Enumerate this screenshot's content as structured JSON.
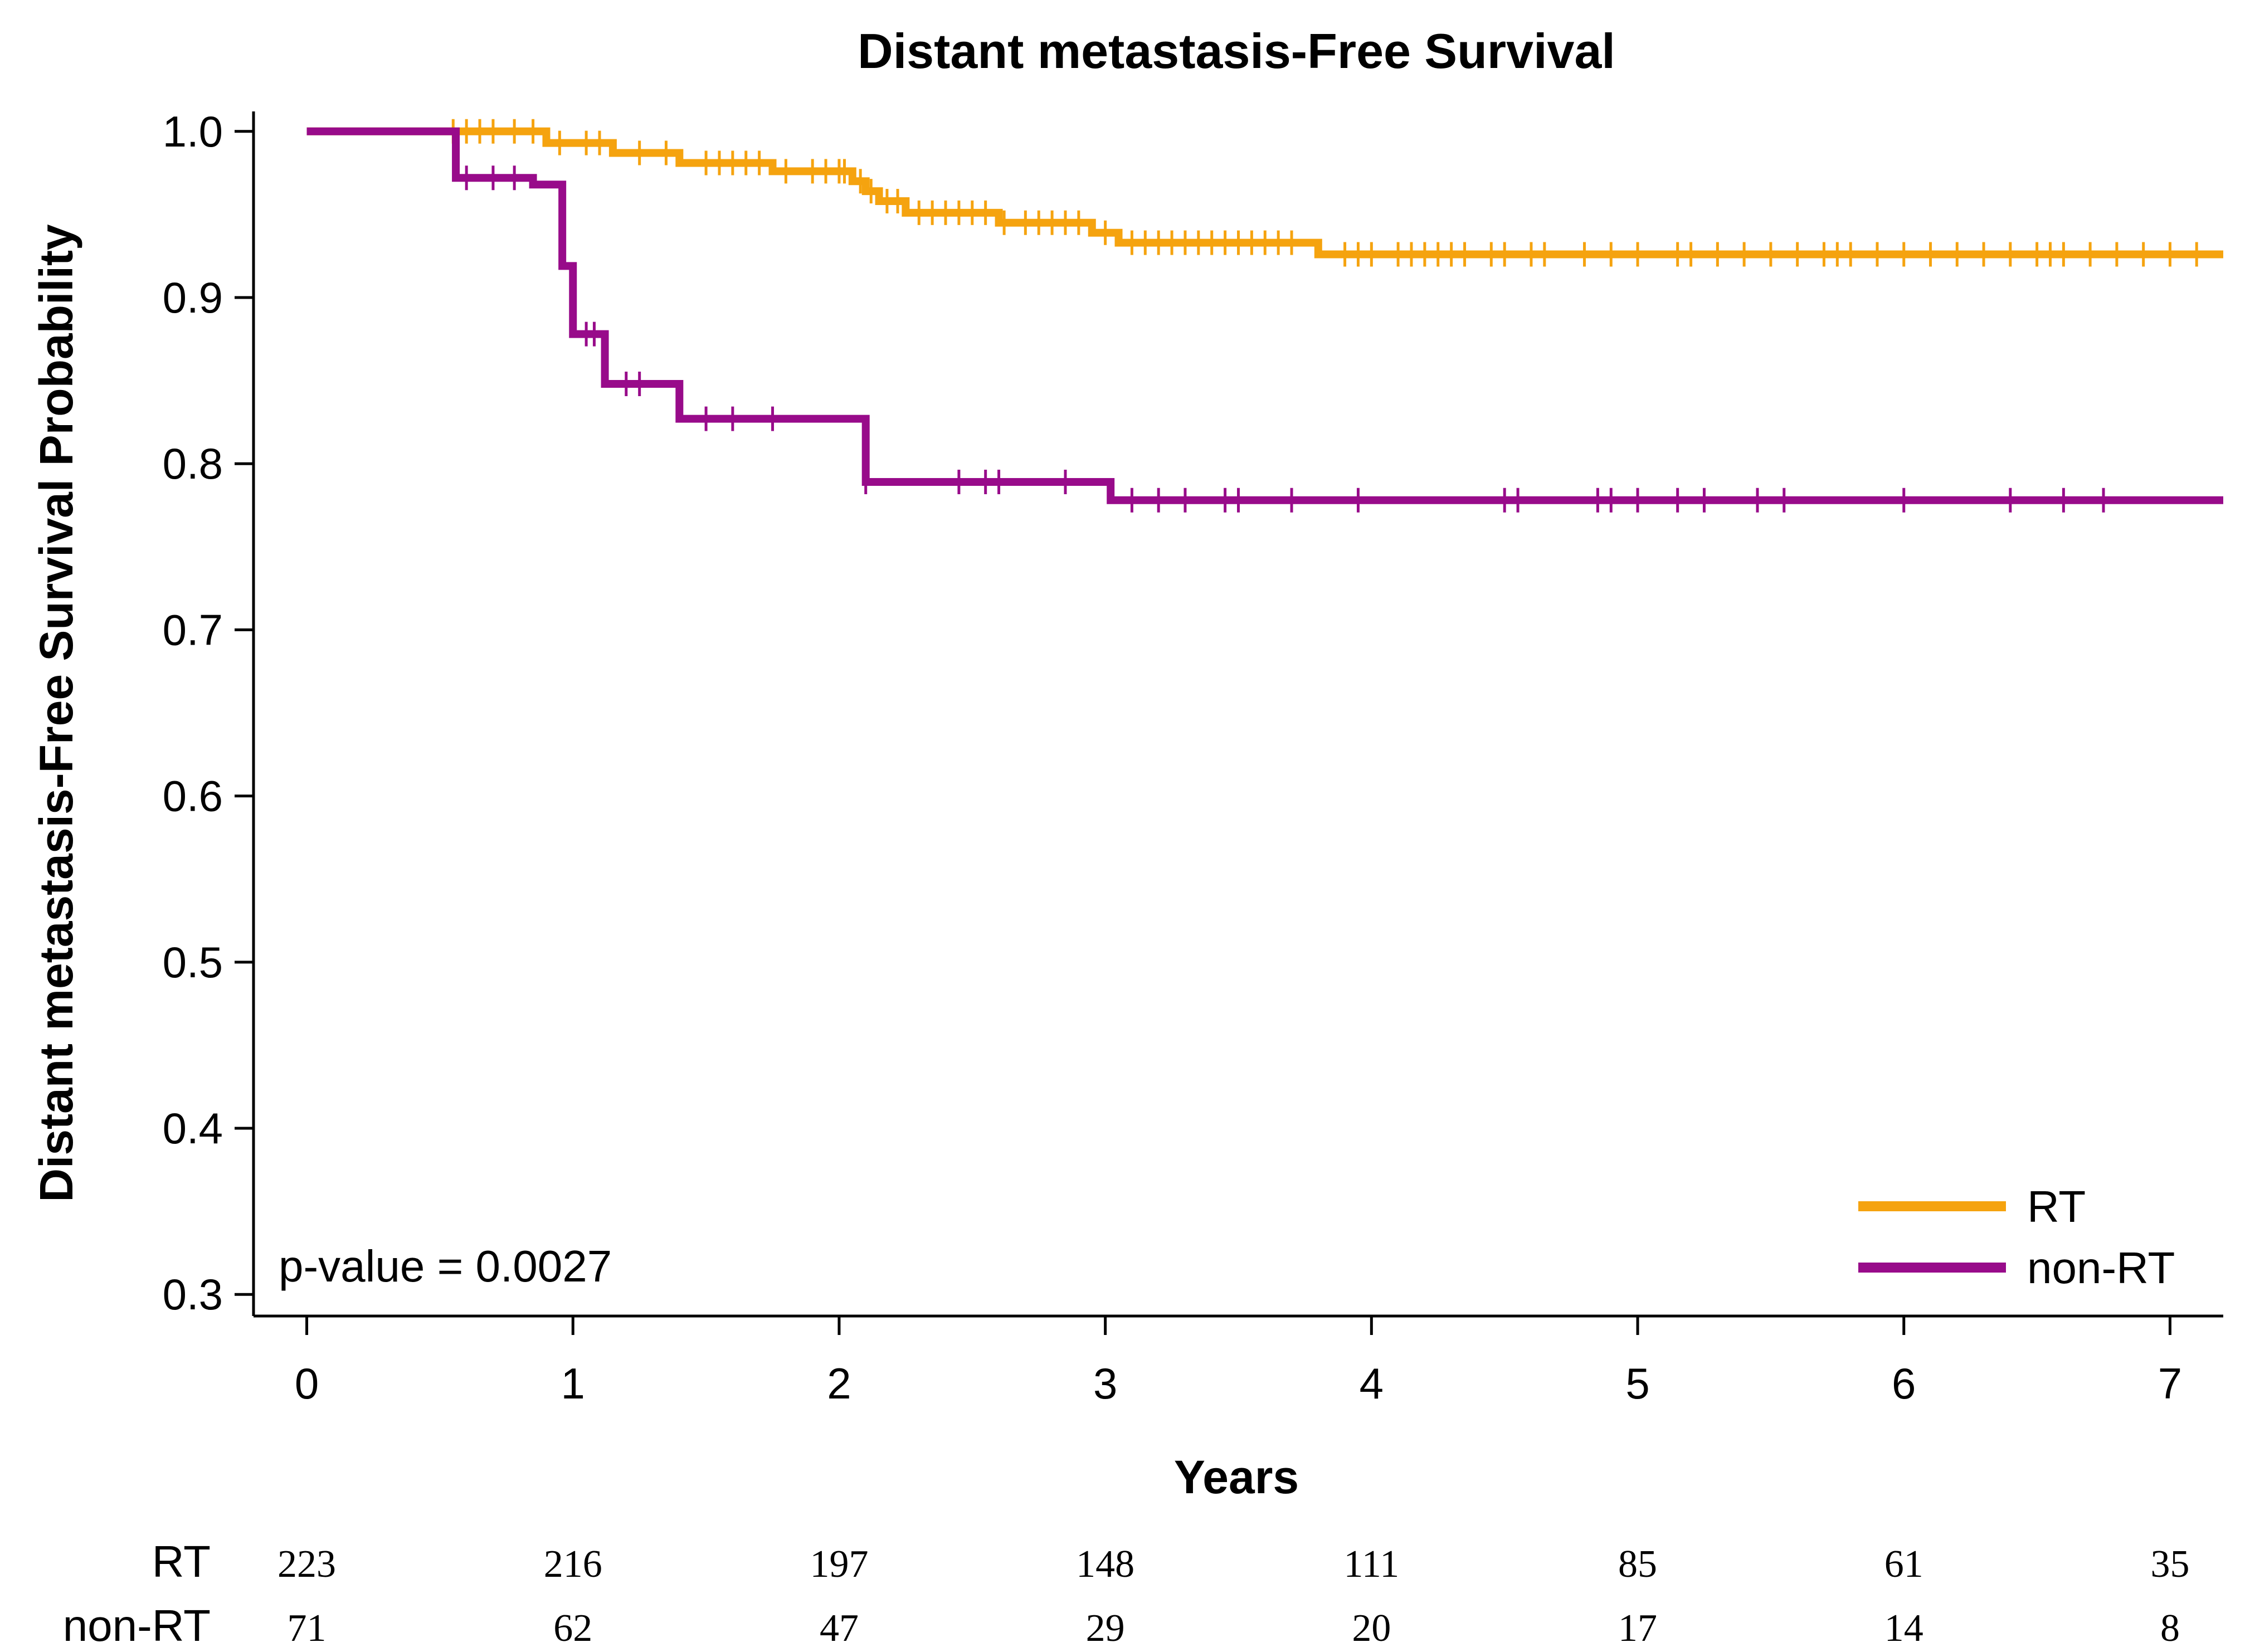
{
  "chart_data": {
    "type": "line",
    "title": "Distant metastasis-Free Survival",
    "xlabel": "Years",
    "ylabel": "Distant metastasis-Free Survival Probability",
    "xlim": [
      -0.2,
      7.2
    ],
    "ylim": [
      0.287,
      1.012
    ],
    "xticks": [
      0,
      1,
      2,
      3,
      4,
      5,
      6,
      7
    ],
    "yticks": [
      0.3,
      0.4,
      0.5,
      0.6,
      0.7,
      0.8,
      0.9,
      1.0
    ],
    "annotation": "p-value = 0.0027",
    "legend_position": "bottom-right",
    "series": [
      {
        "name": "RT",
        "color": "#F5A30F",
        "steps": [
          [
            0,
            1.0
          ],
          [
            0.9,
            0.993
          ],
          [
            1.15,
            0.987
          ],
          [
            1.4,
            0.981
          ],
          [
            1.75,
            0.976
          ],
          [
            2.05,
            0.97
          ],
          [
            2.1,
            0.964
          ],
          [
            2.15,
            0.958
          ],
          [
            2.25,
            0.951
          ],
          [
            2.6,
            0.945
          ],
          [
            2.95,
            0.939
          ],
          [
            3.05,
            0.933
          ],
          [
            3.8,
            0.926
          ],
          [
            7.2,
            0.926
          ]
        ],
        "censors": [
          0.55,
          0.6,
          0.65,
          0.7,
          0.78,
          0.85,
          0.95,
          1.05,
          1.1,
          1.25,
          1.35,
          1.5,
          1.55,
          1.6,
          1.65,
          1.7,
          1.8,
          1.9,
          1.95,
          2.0,
          2.02,
          2.08,
          2.12,
          2.18,
          2.22,
          2.3,
          2.35,
          2.4,
          2.45,
          2.5,
          2.55,
          2.62,
          2.7,
          2.75,
          2.8,
          2.85,
          2.9,
          3.0,
          3.1,
          3.15,
          3.2,
          3.25,
          3.3,
          3.35,
          3.4,
          3.45,
          3.5,
          3.55,
          3.6,
          3.65,
          3.7,
          3.9,
          3.95,
          4.0,
          4.1,
          4.15,
          4.2,
          4.25,
          4.3,
          4.35,
          4.45,
          4.5,
          4.6,
          4.65,
          4.8,
          4.9,
          5.0,
          5.15,
          5.2,
          5.3,
          5.4,
          5.5,
          5.6,
          5.7,
          5.75,
          5.8,
          5.9,
          6.0,
          6.1,
          6.2,
          6.3,
          6.4,
          6.5,
          6.55,
          6.6,
          6.7,
          6.8,
          6.9,
          7.0,
          7.1
        ]
      },
      {
        "name": "non-RT",
        "color": "#980B8A",
        "steps": [
          [
            0,
            1.0
          ],
          [
            0.56,
            0.972
          ],
          [
            0.85,
            0.968
          ],
          [
            0.96,
            0.919
          ],
          [
            1.0,
            0.878
          ],
          [
            1.12,
            0.848
          ],
          [
            1.4,
            0.827
          ],
          [
            2.1,
            0.789
          ],
          [
            3.02,
            0.778
          ],
          [
            7.2,
            0.778
          ]
        ],
        "censors": [
          0.6,
          0.7,
          0.78,
          1.05,
          1.08,
          1.2,
          1.25,
          1.5,
          1.6,
          1.75,
          2.1,
          2.45,
          2.55,
          2.6,
          2.85,
          3.1,
          3.2,
          3.3,
          3.45,
          3.5,
          3.7,
          3.95,
          4.5,
          4.55,
          4.85,
          4.9,
          5.0,
          5.15,
          5.25,
          5.45,
          5.55,
          6.0,
          6.4,
          6.6,
          6.75
        ]
      }
    ],
    "risk_table": {
      "times": [
        0,
        1,
        2,
        3,
        4,
        5,
        6,
        7
      ],
      "rows": [
        {
          "label": "RT",
          "values": [
            "223",
            "216",
            "197",
            "148",
            "111",
            "85",
            "61",
            "35"
          ]
        },
        {
          "label": "non-RT",
          "values": [
            "71",
            "62",
            "47",
            "29",
            "20",
            "17",
            "14",
            "8"
          ]
        }
      ]
    }
  }
}
